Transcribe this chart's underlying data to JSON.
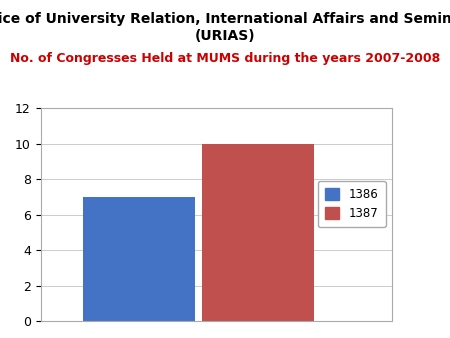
{
  "title_line1": "Office of University Relation, International Affairs and Seminars",
  "title_line2": "(URIAS)",
  "subtitle": "No. of Congresses Held at MUMS during the years 2007-2008",
  "subtitle_color": "#CC0000",
  "categories": [
    "1386",
    "1387"
  ],
  "values": [
    7,
    10
  ],
  "bar_colors": [
    "#4472C4",
    "#C0504D"
  ],
  "ylim": [
    0,
    12
  ],
  "yticks": [
    0,
    2,
    4,
    6,
    8,
    10,
    12
  ],
  "legend_labels": [
    "1386",
    "1387"
  ],
  "background_color": "#FFFFFF",
  "plot_bg_color": "#FFFFFF",
  "title_fontsize": 10,
  "subtitle_fontsize": 9,
  "bar_width": 0.32
}
